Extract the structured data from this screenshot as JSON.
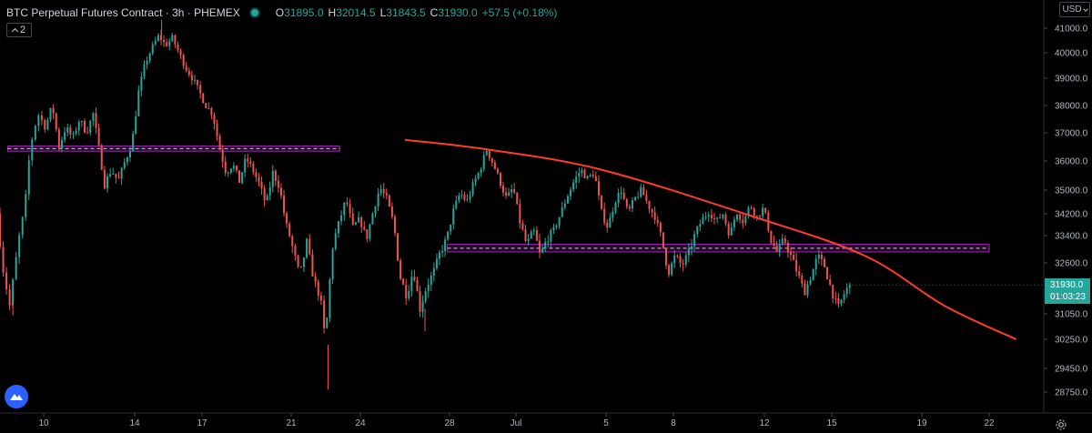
{
  "header": {
    "symbol": "BTC Perpetual Futures Contract · 3h · PHEMEX",
    "ohlc": {
      "o_key": "O",
      "o_val": "31895.0",
      "h_key": "H",
      "h_val": "32014.5",
      "l_key": "L",
      "l_val": "31843.5",
      "c_key": "C",
      "c_val": "31930.0",
      "change": "+57.5 (+0.18%)"
    }
  },
  "indicator_toggle": {
    "label": "2"
  },
  "currency": {
    "label": "USD"
  },
  "last_price": {
    "price": "31930.0",
    "countdown": "01:03:23"
  },
  "icons": {
    "logo": "tradingview-logo-icon",
    "settings": "gear-icon",
    "live": "live-status-dot-icon",
    "chevron": "chevron-icon"
  },
  "colors": {
    "up": "#26a69a",
    "down": "#ef5350",
    "trendline": "#ff3b30",
    "zone": "#9c27b0",
    "background": "#000000"
  },
  "chart_data": {
    "type": "candlestick",
    "timeframe": "3h",
    "ylim": [
      28400,
      41400
    ],
    "y_ticks": [
      {
        "label": "41000.0",
        "value": 41000
      },
      {
        "label": "40000.0",
        "value": 40000
      },
      {
        "label": "39000.0",
        "value": 39000
      },
      {
        "label": "38000.0",
        "value": 38000
      },
      {
        "label": "37000.0",
        "value": 37000
      },
      {
        "label": "36000.0",
        "value": 36000
      },
      {
        "label": "35000.0",
        "value": 35000
      },
      {
        "label": "34200.0",
        "value": 34200
      },
      {
        "label": "33400.0",
        "value": 33400
      },
      {
        "label": "32600.0",
        "value": 32600
      },
      {
        "label": "31050.0",
        "value": 31050
      },
      {
        "label": "30250.0",
        "value": 30250
      },
      {
        "label": "29450.0",
        "value": 29450
      },
      {
        "label": "28750.0",
        "value": 28750
      }
    ],
    "x_ticks": [
      {
        "label": "10",
        "day": 10
      },
      {
        "label": "14",
        "day": 14
      },
      {
        "label": "17",
        "day": 17
      },
      {
        "label": "21",
        "day": 21
      },
      {
        "label": "24",
        "day": 24
      },
      {
        "label": "28",
        "day": 28
      },
      {
        "label": "Jul",
        "day": 31
      },
      {
        "label": "5",
        "day": 35
      },
      {
        "label": "8",
        "day": 38
      },
      {
        "label": "12",
        "day": 42
      },
      {
        "label": "15",
        "day": 45
      },
      {
        "label": "19",
        "day": 49
      },
      {
        "label": "22",
        "day": 52
      }
    ],
    "xlim": [
      8.3,
      53.5
    ],
    "path": [
      [
        8.3,
        34200
      ],
      [
        8.5,
        32600
      ],
      [
        8.8,
        31300
      ],
      [
        9.1,
        33000
      ],
      [
        9.4,
        34500
      ],
      [
        9.6,
        36500
      ],
      [
        9.9,
        37700
      ],
      [
        10.2,
        37200
      ],
      [
        10.5,
        38000
      ],
      [
        10.8,
        36500
      ],
      [
        11.1,
        37200
      ],
      [
        11.4,
        36800
      ],
      [
        11.7,
        37500
      ],
      [
        12.0,
        37000
      ],
      [
        12.3,
        37700
      ],
      [
        12.6,
        36200
      ],
      [
        12.8,
        35200
      ],
      [
        13.1,
        35700
      ],
      [
        13.4,
        35300
      ],
      [
        13.7,
        36000
      ],
      [
        14.0,
        36600
      ],
      [
        14.3,
        38500
      ],
      [
        14.6,
        39600
      ],
      [
        14.9,
        40200
      ],
      [
        15.2,
        40700
      ],
      [
        15.5,
        40300
      ],
      [
        15.8,
        40600
      ],
      [
        16.1,
        40000
      ],
      [
        16.4,
        39400
      ],
      [
        16.7,
        39000
      ],
      [
        17.0,
        38500
      ],
      [
        17.3,
        38000
      ],
      [
        17.6,
        37700
      ],
      [
        17.9,
        36500
      ],
      [
        18.2,
        35600
      ],
      [
        18.5,
        35900
      ],
      [
        18.8,
        35300
      ],
      [
        19.1,
        36100
      ],
      [
        19.4,
        35700
      ],
      [
        19.7,
        35200
      ],
      [
        20.0,
        34500
      ],
      [
        20.3,
        35600
      ],
      [
        20.6,
        35100
      ],
      [
        20.9,
        33800
      ],
      [
        21.2,
        33000
      ],
      [
        21.5,
        32200
      ],
      [
        21.8,
        33200
      ],
      [
        22.1,
        32100
      ],
      [
        22.4,
        31500
      ],
      [
        22.6,
        30200
      ],
      [
        22.9,
        33000
      ],
      [
        23.2,
        33900
      ],
      [
        23.5,
        34700
      ],
      [
        23.8,
        33700
      ],
      [
        24.1,
        34000
      ],
      [
        24.4,
        33300
      ],
      [
        24.7,
        34300
      ],
      [
        25.0,
        35100
      ],
      [
        25.3,
        34700
      ],
      [
        25.6,
        33900
      ],
      [
        25.9,
        32200
      ],
      [
        26.2,
        31600
      ],
      [
        26.5,
        32400
      ],
      [
        26.8,
        31200
      ],
      [
        27.1,
        31900
      ],
      [
        27.4,
        32300
      ],
      [
        27.7,
        32900
      ],
      [
        28.0,
        33300
      ],
      [
        28.3,
        34300
      ],
      [
        28.6,
        34900
      ],
      [
        28.9,
        34600
      ],
      [
        29.2,
        35200
      ],
      [
        29.5,
        35700
      ],
      [
        29.8,
        36400
      ],
      [
        30.1,
        35900
      ],
      [
        30.4,
        35300
      ],
      [
        30.7,
        34700
      ],
      [
        31.0,
        35100
      ],
      [
        31.3,
        33900
      ],
      [
        31.6,
        33100
      ],
      [
        31.9,
        33600
      ],
      [
        32.2,
        32800
      ],
      [
        32.5,
        33300
      ],
      [
        32.8,
        33600
      ],
      [
        33.1,
        34200
      ],
      [
        33.4,
        34800
      ],
      [
        33.7,
        35300
      ],
      [
        34.0,
        35700
      ],
      [
        34.3,
        35400
      ],
      [
        34.6,
        35600
      ],
      [
        34.9,
        34300
      ],
      [
        35.2,
        33700
      ],
      [
        35.5,
        34600
      ],
      [
        35.8,
        35000
      ],
      [
        36.1,
        34200
      ],
      [
        36.4,
        34700
      ],
      [
        36.7,
        35000
      ],
      [
        37.0,
        34500
      ],
      [
        37.3,
        34100
      ],
      [
        37.6,
        33300
      ],
      [
        37.9,
        32300
      ],
      [
        38.2,
        32800
      ],
      [
        38.5,
        32500
      ],
      [
        38.8,
        32900
      ],
      [
        39.1,
        33500
      ],
      [
        39.4,
        34000
      ],
      [
        39.7,
        34300
      ],
      [
        40.0,
        33900
      ],
      [
        40.3,
        34200
      ],
      [
        40.6,
        33400
      ],
      [
        40.9,
        34300
      ],
      [
        41.2,
        33900
      ],
      [
        41.5,
        34500
      ],
      [
        41.8,
        34100
      ],
      [
        42.1,
        34400
      ],
      [
        42.4,
        33300
      ],
      [
        42.7,
        32900
      ],
      [
        43.0,
        33300
      ],
      [
        43.3,
        32800
      ],
      [
        43.6,
        32300
      ],
      [
        43.9,
        31700
      ],
      [
        44.2,
        32200
      ],
      [
        44.5,
        32800
      ],
      [
        44.8,
        32500
      ],
      [
        45.1,
        31800
      ],
      [
        45.4,
        31200
      ],
      [
        45.7,
        31700
      ],
      [
        45.9,
        31930
      ]
    ],
    "trendline": {
      "points": [
        [
          26.0,
          36750
        ],
        [
          29.8,
          36400
        ],
        [
          34.8,
          35700
        ],
        [
          41.5,
          34100
        ],
        [
          46.5,
          32800
        ],
        [
          50.0,
          31300
        ],
        [
          53.2,
          30250
        ]
      ]
    },
    "zones": [
      {
        "x0": 8.6,
        "x1": 23.1,
        "lo": 36350,
        "hi": 36530,
        "mid": 36440
      },
      {
        "x0": 27.9,
        "x1": 52.0,
        "lo": 32920,
        "hi": 33150,
        "mid": 33030
      }
    ]
  }
}
